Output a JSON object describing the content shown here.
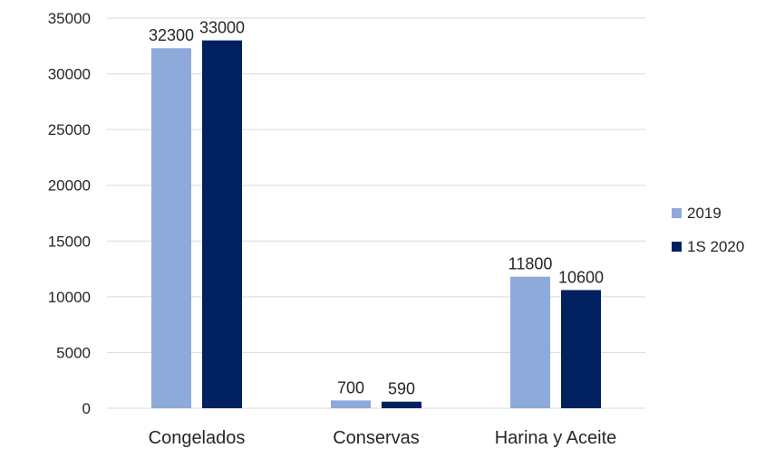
{
  "chart_data": {
    "type": "bar",
    "categories": [
      "Congelados",
      "Conservas",
      "Harina y Aceite"
    ],
    "series": [
      {
        "name": "2019",
        "values": [
          32300,
          700,
          11800
        ],
        "color": "#8eaadb"
      },
      {
        "name": "1S 2020",
        "values": [
          33000,
          590,
          10600
        ],
        "color": "#002060"
      }
    ],
    "title": "",
    "xlabel": "",
    "ylabel": "",
    "ylim": [
      0,
      35000
    ],
    "yticks": [
      0,
      5000,
      10000,
      15000,
      20000,
      25000,
      30000,
      35000
    ],
    "grid": true,
    "legend_position": "right"
  }
}
